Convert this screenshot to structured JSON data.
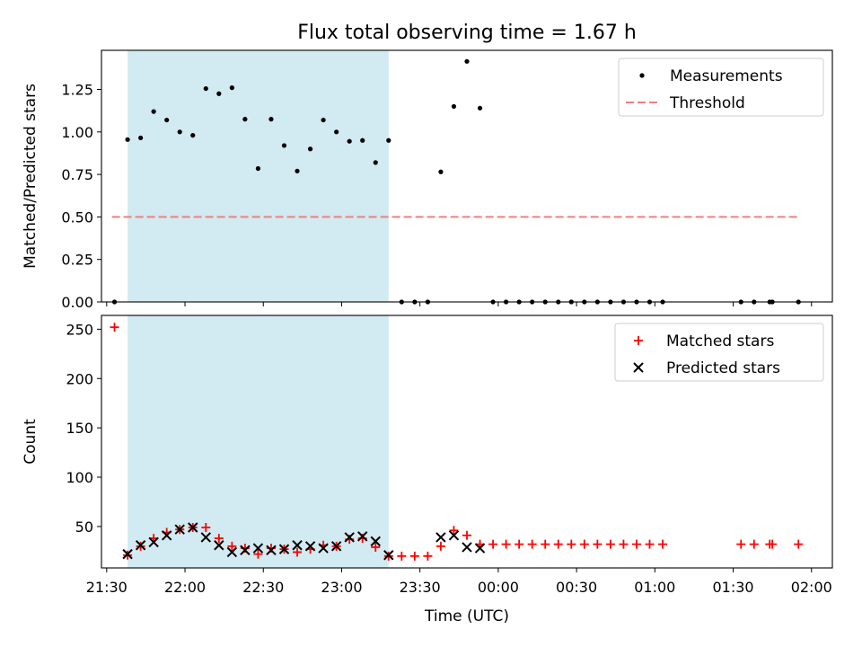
{
  "chart_data": {
    "title": "Flux total observing time = 1.67 h",
    "type": "scatter",
    "shaded_region": {
      "x_start": "21:38",
      "x_end": "23:18",
      "color": "#add8e6"
    },
    "x_axis": {
      "label": "Time (UTC)",
      "range": [
        "21:28",
        "02:08"
      ],
      "ticks": [
        {
          "value": "21:30",
          "label": "21:30"
        },
        {
          "value": "22:00",
          "label": "22:00"
        },
        {
          "value": "22:30",
          "label": "22:30"
        },
        {
          "value": "23:00",
          "label": "23:00"
        },
        {
          "value": "23:30",
          "label": "23:30"
        },
        {
          "value": "00:00",
          "label": "00:00"
        },
        {
          "value": "00:30",
          "label": "00:30"
        },
        {
          "value": "01:00",
          "label": "01:00"
        },
        {
          "value": "01:30",
          "label": "01:30"
        },
        {
          "value": "02:00",
          "label": "02:00"
        }
      ]
    },
    "panels": [
      {
        "name": "ratio",
        "ylabel": "Matched/Predicted stars",
        "ylim": [
          0,
          1.48
        ],
        "yticks": [
          {
            "value": 0,
            "label": "0.00"
          },
          {
            "value": 0.25,
            "label": "0.25"
          },
          {
            "value": 0.5,
            "label": "0.50"
          },
          {
            "value": 0.75,
            "label": "0.75"
          },
          {
            "value": 1.0,
            "label": "1.00"
          },
          {
            "value": 1.25,
            "label": "1.25"
          }
        ],
        "legend_position": "upper-right",
        "legend": [
          {
            "label": "Measurements",
            "marker": "dot",
            "color": "#000000"
          },
          {
            "label": "Threshold",
            "marker": "dash",
            "color": "#f08080"
          }
        ],
        "threshold": {
          "value": 0.5,
          "x_start": "21:32",
          "x_end": "01:55",
          "color": "#f08080"
        },
        "series": [
          {
            "name": "Measurements",
            "marker": "dot",
            "color": "#000000",
            "points": [
              [
                "21:33",
                0.0
              ],
              [
                "21:38",
                0.955
              ],
              [
                "21:43",
                0.965
              ],
              [
                "21:48",
                1.12
              ],
              [
                "21:53",
                1.07
              ],
              [
                "21:58",
                1.0
              ],
              [
                "22:03",
                0.98
              ],
              [
                "22:08",
                1.255
              ],
              [
                "22:13",
                1.225
              ],
              [
                "22:18",
                1.26
              ],
              [
                "22:23",
                1.075
              ],
              [
                "22:28",
                0.785
              ],
              [
                "22:33",
                1.075
              ],
              [
                "22:38",
                0.92
              ],
              [
                "22:43",
                0.77
              ],
              [
                "22:48",
                0.9
              ],
              [
                "22:53",
                1.07
              ],
              [
                "22:58",
                1.0
              ],
              [
                "23:03",
                0.945
              ],
              [
                "23:08",
                0.95
              ],
              [
                "23:13",
                0.82
              ],
              [
                "23:18",
                0.95
              ],
              [
                "23:23",
                0.0
              ],
              [
                "23:28",
                0.0
              ],
              [
                "23:33",
                0.0
              ],
              [
                "23:38",
                0.765
              ],
              [
                "23:43",
                1.15
              ],
              [
                "23:48",
                1.415
              ],
              [
                "23:53",
                1.14
              ],
              [
                "23:58",
                0.0
              ],
              [
                "00:03",
                0.0
              ],
              [
                "00:08",
                0.0
              ],
              [
                "00:13",
                0.0
              ],
              [
                "00:18",
                0.0
              ],
              [
                "00:23",
                0.0
              ],
              [
                "00:28",
                0.0
              ],
              [
                "00:33",
                0.0
              ],
              [
                "00:38",
                0.0
              ],
              [
                "00:43",
                0.0
              ],
              [
                "00:48",
                0.0
              ],
              [
                "00:53",
                0.0
              ],
              [
                "00:58",
                0.0
              ],
              [
                "01:03",
                0.0
              ],
              [
                "01:33",
                0.0
              ],
              [
                "01:38",
                0.0
              ],
              [
                "01:44",
                0.0
              ],
              [
                "01:45",
                0.0
              ],
              [
                "01:55",
                0.0
              ]
            ]
          }
        ]
      },
      {
        "name": "counts",
        "ylabel": "Count",
        "ylim": [
          8,
          264
        ],
        "yticks": [
          {
            "value": 50,
            "label": "50"
          },
          {
            "value": 100,
            "label": "100"
          },
          {
            "value": 150,
            "label": "150"
          },
          {
            "value": 200,
            "label": "200"
          },
          {
            "value": 250,
            "label": "250"
          }
        ],
        "legend_position": "upper-right",
        "legend": [
          {
            "label": "Matched stars",
            "marker": "plus",
            "color": "#ff0000"
          },
          {
            "label": "Predicted stars",
            "marker": "x",
            "color": "#000000"
          }
        ],
        "series": [
          {
            "name": "Matched stars",
            "marker": "plus",
            "color": "#ff0000",
            "points": [
              [
                "21:33",
                252
              ],
              [
                "21:38",
                21
              ],
              [
                "21:43",
                30
              ],
              [
                "21:48",
                38
              ],
              [
                "21:53",
                44
              ],
              [
                "21:58",
                47
              ],
              [
                "22:03",
                49
              ],
              [
                "22:08",
                49
              ],
              [
                "22:13",
                38
              ],
              [
                "22:18",
                30
              ],
              [
                "22:23",
                28
              ],
              [
                "22:28",
                22
              ],
              [
                "22:33",
                28
              ],
              [
                "22:38",
                27
              ],
              [
                "22:43",
                24
              ],
              [
                "22:48",
                27
              ],
              [
                "22:53",
                31
              ],
              [
                "22:58",
                30
              ],
              [
                "23:03",
                37
              ],
              [
                "23:08",
                38
              ],
              [
                "23:13",
                29
              ],
              [
                "23:18",
                20
              ],
              [
                "23:23",
                20
              ],
              [
                "23:28",
                20
              ],
              [
                "23:33",
                20
              ],
              [
                "23:38",
                30
              ],
              [
                "23:43",
                46
              ],
              [
                "23:48",
                41
              ],
              [
                "23:53",
                32
              ],
              [
                "23:58",
                32
              ],
              [
                "00:03",
                32
              ],
              [
                "00:08",
                32
              ],
              [
                "00:13",
                32
              ],
              [
                "00:18",
                32
              ],
              [
                "00:23",
                32
              ],
              [
                "00:28",
                32
              ],
              [
                "00:33",
                32
              ],
              [
                "00:38",
                32
              ],
              [
                "00:43",
                32
              ],
              [
                "00:48",
                32
              ],
              [
                "00:53",
                32
              ],
              [
                "00:58",
                32
              ],
              [
                "01:03",
                32
              ],
              [
                "01:33",
                32
              ],
              [
                "01:38",
                32
              ],
              [
                "01:44",
                32
              ],
              [
                "01:45",
                32
              ],
              [
                "01:55",
                32
              ]
            ]
          },
          {
            "name": "Predicted stars",
            "marker": "x",
            "color": "#000000",
            "points": [
              [
                "21:38",
                22
              ],
              [
                "21:43",
                31
              ],
              [
                "21:48",
                34
              ],
              [
                "21:53",
                41
              ],
              [
                "21:58",
                47
              ],
              [
                "22:03",
                49
              ],
              [
                "22:08",
                39
              ],
              [
                "22:13",
                31
              ],
              [
                "22:18",
                24
              ],
              [
                "22:23",
                26
              ],
              [
                "22:28",
                28
              ],
              [
                "22:33",
                26
              ],
              [
                "22:38",
                27
              ],
              [
                "22:43",
                31
              ],
              [
                "22:48",
                30
              ],
              [
                "22:53",
                28
              ],
              [
                "22:58",
                30
              ],
              [
                "23:03",
                39
              ],
              [
                "23:08",
                40
              ],
              [
                "23:13",
                35
              ],
              [
                "23:18",
                21
              ],
              [
                "23:38",
                39
              ],
              [
                "23:43",
                41
              ],
              [
                "23:48",
                29
              ],
              [
                "23:53",
                28
              ]
            ]
          }
        ]
      }
    ]
  }
}
